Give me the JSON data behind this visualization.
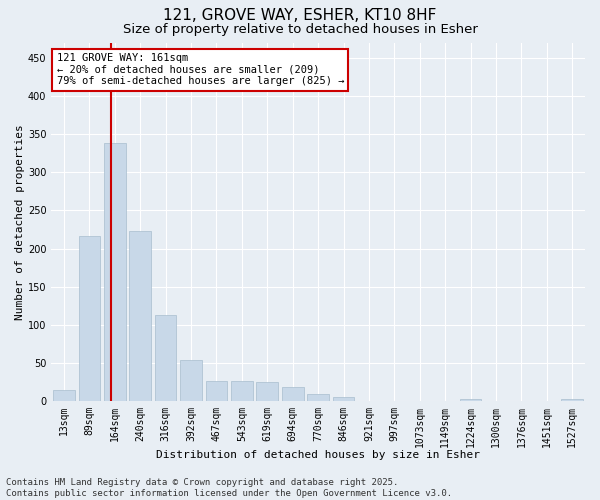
{
  "title_line1": "121, GROVE WAY, ESHER, KT10 8HF",
  "title_line2": "Size of property relative to detached houses in Esher",
  "xlabel": "Distribution of detached houses by size in Esher",
  "ylabel": "Number of detached properties",
  "categories": [
    "13sqm",
    "89sqm",
    "164sqm",
    "240sqm",
    "316sqm",
    "392sqm",
    "467sqm",
    "543sqm",
    "619sqm",
    "694sqm",
    "770sqm",
    "846sqm",
    "921sqm",
    "997sqm",
    "1073sqm",
    "1149sqm",
    "1224sqm",
    "1300sqm",
    "1376sqm",
    "1451sqm",
    "1527sqm"
  ],
  "values": [
    15,
    216,
    338,
    223,
    113,
    54,
    27,
    26,
    25,
    18,
    10,
    6,
    0,
    0,
    0,
    0,
    3,
    0,
    0,
    0,
    3
  ],
  "bar_color": "#c8d8e8",
  "bar_edge_color": "#a8bece",
  "vline_color": "#cc0000",
  "vline_x": 1.85,
  "annotation_text": "121 GROVE WAY: 161sqm\n← 20% of detached houses are smaller (209)\n79% of semi-detached houses are larger (825) →",
  "annotation_box_color": "#ffffff",
  "annotation_box_edge": "#cc0000",
  "ylim": [
    0,
    470
  ],
  "yticks": [
    0,
    50,
    100,
    150,
    200,
    250,
    300,
    350,
    400,
    450
  ],
  "background_color": "#e8eef4",
  "grid_color": "#ffffff",
  "footer_line1": "Contains HM Land Registry data © Crown copyright and database right 2025.",
  "footer_line2": "Contains public sector information licensed under the Open Government Licence v3.0.",
  "title_fontsize": 11,
  "subtitle_fontsize": 9.5,
  "axis_label_fontsize": 8,
  "tick_fontsize": 7,
  "annotation_fontsize": 7.5,
  "footer_fontsize": 6.5
}
